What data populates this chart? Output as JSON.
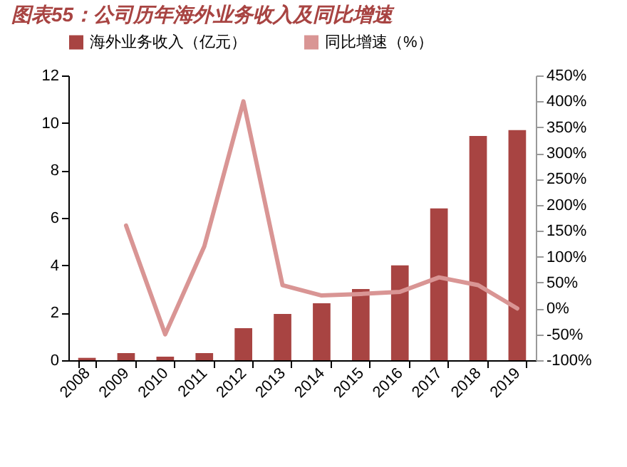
{
  "chart_data": {
    "type": "bar",
    "title": "图表55：公司历年海外业务收入及同比增速",
    "categories": [
      "2008",
      "2009",
      "2010",
      "2011",
      "2012",
      "2013",
      "2014",
      "2015",
      "2016",
      "2017",
      "2018",
      "2019"
    ],
    "series": [
      {
        "name": "海外业务收入（亿元）",
        "color": "#a84442",
        "values": [
          0.1,
          0.3,
          0.15,
          0.3,
          1.35,
          1.95,
          2.4,
          3.0,
          4.0,
          6.4,
          9.45,
          9.7
        ]
      },
      {
        "name": "同比增速（%）",
        "type": "line",
        "axis": "y2",
        "color": "#d99594",
        "values": [
          null,
          160,
          -50,
          120,
          400,
          45,
          25,
          28,
          32,
          60,
          45,
          0
        ]
      }
    ],
    "ylim": [
      0,
      12
    ],
    "yticks": [
      0,
      2,
      4,
      6,
      8,
      10,
      12
    ],
    "y2lim": [
      -100,
      450
    ],
    "y2ticks": [
      {
        "value": -100,
        "label": "-100%"
      },
      {
        "value": -50,
        "label": "-50%"
      },
      {
        "value": 0,
        "label": "0%"
      },
      {
        "value": 50,
        "label": "50%"
      },
      {
        "value": 100,
        "label": "100%"
      },
      {
        "value": 150,
        "label": "150%"
      },
      {
        "value": 200,
        "label": "200%"
      },
      {
        "value": 250,
        "label": "250%"
      },
      {
        "value": 300,
        "label": "300%"
      },
      {
        "value": 350,
        "label": "350%"
      },
      {
        "value": 400,
        "label": "400%"
      },
      {
        "value": 450,
        "label": "450%"
      }
    ],
    "grid": false,
    "legend": "top"
  }
}
